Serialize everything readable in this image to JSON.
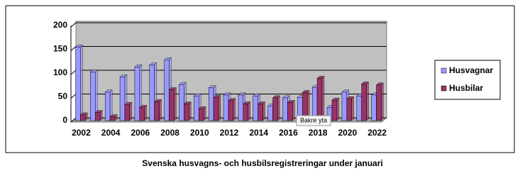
{
  "chart_data": {
    "type": "bar",
    "title": "Svenska husvagns- och husbilsregistreringar under januari",
    "categories": [
      "2002",
      null,
      "2004",
      null,
      "2006",
      null,
      "2008",
      null,
      "2010",
      null,
      "2012",
      null,
      "2014",
      null,
      "2016",
      null,
      "2018",
      null,
      "2020",
      null,
      "2022"
    ],
    "series": [
      {
        "name": "Husvagnar",
        "color": "#9999ff",
        "values": [
          155,
          102,
          60,
          92,
          113,
          117,
          128,
          76,
          52,
          69,
          54,
          54,
          52,
          31,
          48,
          49,
          70,
          28,
          60,
          52,
          54
        ]
      },
      {
        "name": "Husbilar",
        "color": "#993366",
        "values": [
          12,
          17,
          8,
          34,
          28,
          40,
          65,
          35,
          25,
          49,
          42,
          35,
          35,
          48,
          38,
          59,
          89,
          43,
          46,
          77,
          75
        ]
      }
    ],
    "ylim": [
      0,
      200
    ],
    "yticks": [
      0,
      50,
      100,
      150,
      200
    ],
    "grid": true,
    "legend": "right",
    "tooltip": "Bakre yta"
  }
}
